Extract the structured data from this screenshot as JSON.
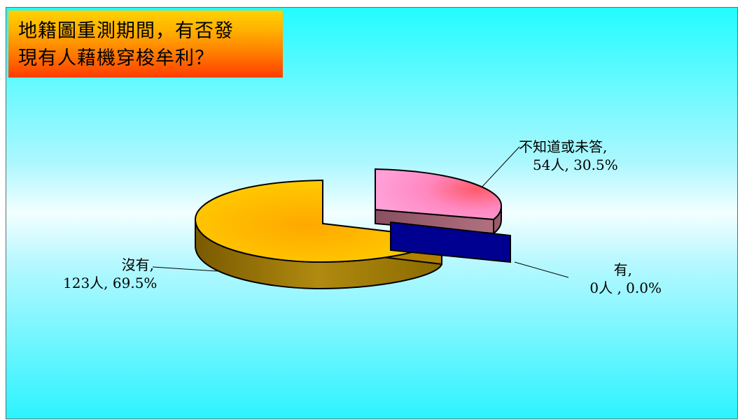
{
  "title": {
    "line1": "地籍圖重測期間，有否發",
    "line2": "現有人藉機穿梭牟利？"
  },
  "colors": {
    "bg_top": "#22fcff",
    "slice_no": "#ffc400",
    "slice_unknown": "#ff88c8",
    "slice_yes": "#000090"
  },
  "chart_data": {
    "type": "pie",
    "title": "地籍圖重測期間，有否發現有人藉機穿梭牟利？",
    "slices": [
      {
        "label": "沒有",
        "count": "123人",
        "percent_text": "69.5%",
        "value": 123,
        "percent": 69.5
      },
      {
        "label": "不知道或未答",
        "count": "54人",
        "percent_text": "30.5%",
        "value": 54,
        "percent": 30.5
      },
      {
        "label": "有",
        "count": "0人",
        "percent_text": "0.0%",
        "value": 0,
        "percent": 0.0
      }
    ],
    "labels": {
      "no_line1": "沒有,",
      "no_line2": "123人, 69.5%",
      "unknown_line1": "不知道或未答,",
      "unknown_line2": "54人, 30.5%",
      "yes_line1": "有,",
      "yes_line2": "0人 , 0.0%"
    },
    "style": "3d-exploded"
  }
}
